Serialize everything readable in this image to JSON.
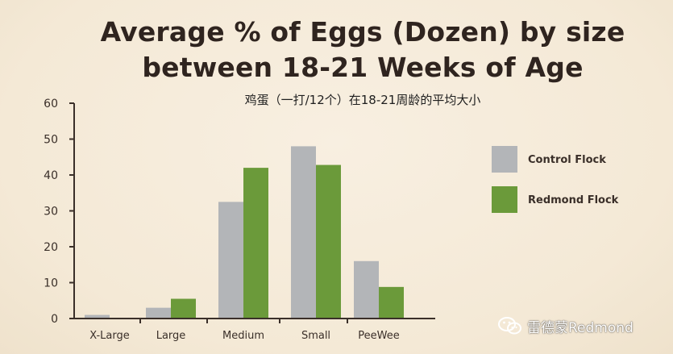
{
  "header": {
    "title_line1": "Average % of Eggs (Dozen) by size",
    "title_line2": "between 18-21 Weeks of Age",
    "subtitle": "鸡蛋（一打/12个）在18-21周龄的平均大小"
  },
  "watermark": {
    "text": "雷德蒙Redmond",
    "icon": "wechat-icon"
  },
  "colors": {
    "control": "#b3b5b8",
    "redmond": "#6b9a3a",
    "axis": "#3a2f29"
  },
  "chart_data": {
    "type": "bar",
    "categories": [
      "X-Large",
      "Large",
      "Medium",
      "Small",
      "PeeWee"
    ],
    "series": [
      {
        "name": "Control Flock",
        "values": [
          1,
          3,
          32.5,
          48,
          16
        ]
      },
      {
        "name": "Redmond Flock",
        "values": [
          0,
          5.5,
          42,
          42.8,
          8.8
        ]
      }
    ],
    "title": "Average % of Eggs (Dozen) by size between 18-21 Weeks of Age",
    "subtitle": "鸡蛋（一打/12个）在18-21周龄的平均大小",
    "xlabel": "",
    "ylabel": "",
    "ylim": [
      0,
      60
    ],
    "yticks": [
      0,
      10,
      20,
      30,
      40,
      50,
      60
    ],
    "grid": false,
    "legend": "right"
  }
}
